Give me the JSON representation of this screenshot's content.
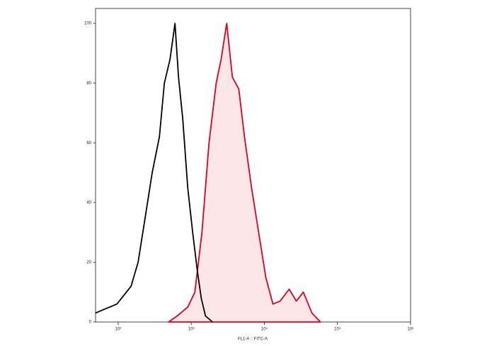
{
  "chart_data": {
    "type": "line",
    "x_label": "FL1-A :: FITC-A",
    "xscale": "log",
    "xlim": [
      49,
      1000000
    ],
    "xticks": [
      {
        "value": 100,
        "label": "10²"
      },
      {
        "value": 1000,
        "label": "10³"
      },
      {
        "value": 10000,
        "label": "10⁴"
      },
      {
        "value": 100000,
        "label": "10⁵"
      },
      {
        "value": 1000000,
        "label": "10⁶"
      }
    ],
    "ylim": [
      0,
      105
    ],
    "yticks": [
      0,
      20,
      40,
      60,
      80,
      100
    ],
    "grid": false,
    "series": [
      {
        "color": "#000000",
        "fill": "none",
        "x": [
          49,
          61,
          76,
          96,
          120,
          150,
          187,
          234,
          292,
          366,
          428,
          512,
          598,
          669,
          764,
          893,
          1045,
          1196,
          1368,
          1563,
          1953
        ],
        "values": [
          3,
          4,
          5,
          6,
          9,
          12,
          20,
          35,
          50,
          62,
          80,
          88,
          100,
          82,
          68,
          45,
          30,
          18,
          8,
          2,
          0
        ]
      },
      {
        "color": "#e0001b",
        "fill": "#fde6e8",
        "x": [
          489,
          640,
          893,
          1119,
          1400,
          1750,
          2188,
          2558,
          3057,
          3653,
          4467,
          5343,
          6683,
          8356,
          10450,
          13090,
          16370,
          21890,
          27350,
          34200,
          44700,
          58500
        ],
        "values": [
          0,
          2,
          5,
          10,
          30,
          60,
          80,
          88,
          100,
          82,
          78,
          62,
          45,
          30,
          15,
          6,
          7,
          11,
          7,
          10,
          3,
          0
        ]
      }
    ]
  }
}
